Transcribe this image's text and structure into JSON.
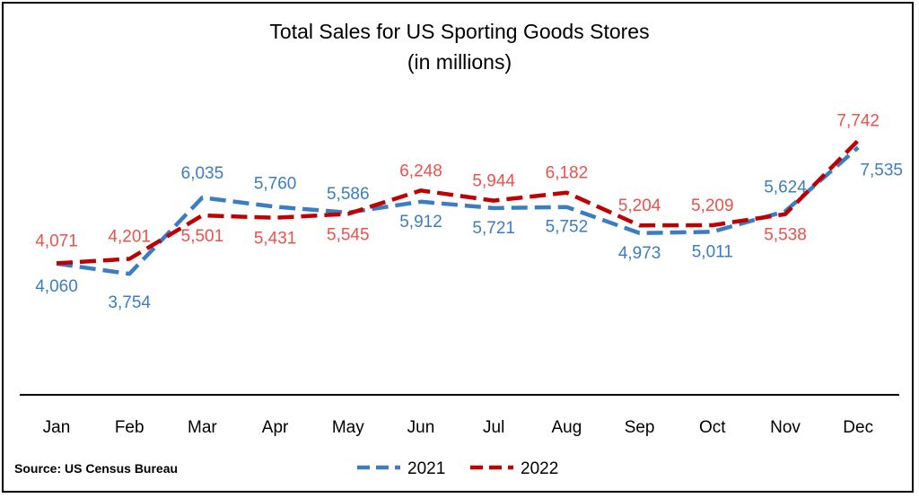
{
  "chart_data": {
    "type": "line",
    "title": "Total Sales for US Sporting Goods Stores",
    "subtitle": "(in millions)",
    "categories": [
      "Jan",
      "Feb",
      "Mar",
      "Apr",
      "May",
      "Jun",
      "Jul",
      "Aug",
      "Sep",
      "Oct",
      "Nov",
      "Dec"
    ],
    "series": [
      {
        "name": "2021",
        "color": "#3B7DC4",
        "values": [
          4060,
          3754,
          6035,
          5760,
          5586,
          5912,
          5721,
          5752,
          4973,
          5011,
          5624,
          7535
        ],
        "labels": [
          "4,060",
          "3,754",
          "6,035",
          "5,760",
          "5,586",
          "5,912",
          "5,721",
          "5,752",
          "4,973",
          "5,011",
          "5,624",
          "7,535"
        ]
      },
      {
        "name": "2022",
        "color": "#C00000",
        "label_color": "#F0504A",
        "values": [
          4071,
          4201,
          5501,
          5431,
          5545,
          6248,
          5944,
          6182,
          5204,
          5209,
          5538,
          7742
        ],
        "labels": [
          "4,071",
          "4,201",
          "5,501",
          "5,431",
          "5,545",
          "6,248",
          "5,944",
          "6,182",
          "5,204",
          "5,209",
          "5,538",
          "7,742"
        ]
      }
    ],
    "ylim": [
      0,
      8000
    ],
    "grid": false,
    "legend_position": "bottom",
    "source": "Source: US Census Bureau"
  }
}
